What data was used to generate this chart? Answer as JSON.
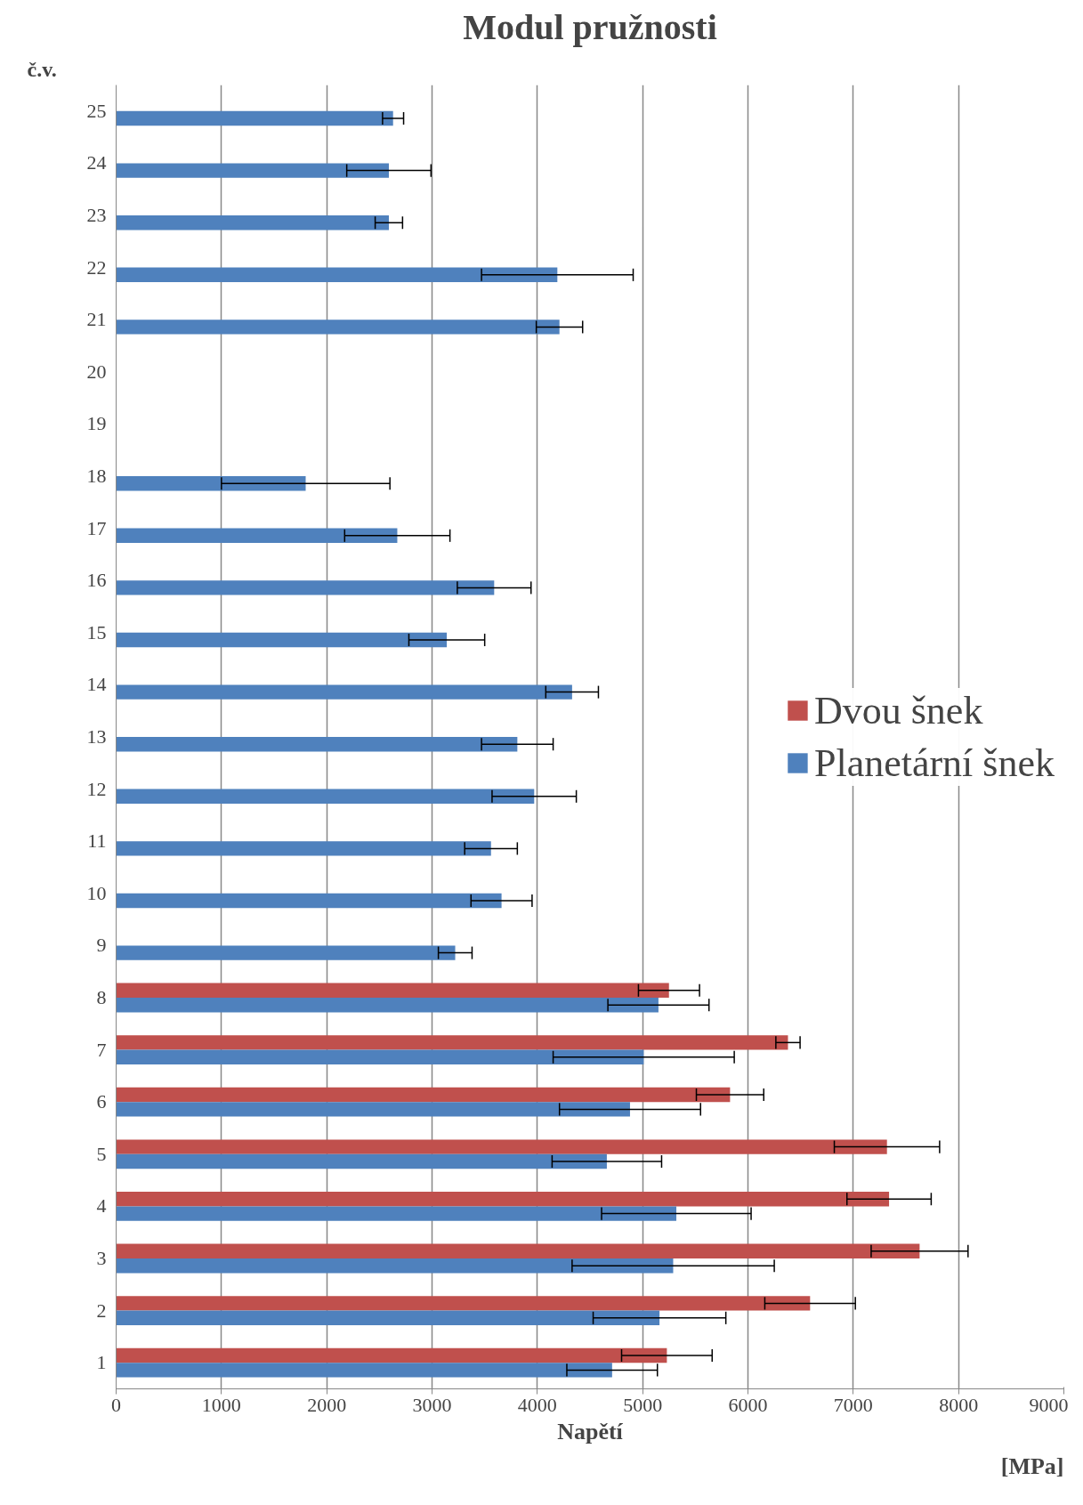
{
  "chart_data": {
    "type": "bar",
    "orientation": "horizontal",
    "title": "Modul pružnosti",
    "xlabel": "Napětí",
    "ylabel": "č.v.",
    "annotations": [
      "[MPa]"
    ],
    "categories": [
      "25",
      "24",
      "23",
      "22",
      "21",
      "20",
      "19",
      "18",
      "17",
      "16",
      "15",
      "14",
      "13",
      "12",
      "11",
      "10",
      "9",
      "8",
      "7",
      "6",
      "5",
      "4",
      "3",
      "2",
      "1"
    ],
    "series": [
      {
        "name": "Dvou šnek",
        "color": "#c0504d",
        "values": [
          null,
          null,
          null,
          null,
          null,
          null,
          null,
          null,
          null,
          null,
          null,
          null,
          null,
          null,
          null,
          null,
          null,
          5250,
          6380,
          5830,
          7320,
          7340,
          7630,
          6590,
          5230
        ],
        "errors": [
          null,
          null,
          null,
          null,
          null,
          null,
          null,
          null,
          null,
          null,
          null,
          null,
          null,
          null,
          null,
          null,
          null,
          290,
          115,
          320,
          500,
          400,
          460,
          430,
          430
        ]
      },
      {
        "name": "Planetární šnek",
        "color": "#4f81bd",
        "values": [
          2630,
          2590,
          2590,
          4190,
          4210,
          null,
          null,
          1800,
          2670,
          3590,
          3140,
          4330,
          3810,
          3970,
          3560,
          3660,
          3220,
          5150,
          5010,
          4880,
          4660,
          5320,
          5290,
          5160,
          4710
        ],
        "errors": [
          100,
          400,
          130,
          720,
          220,
          null,
          null,
          800,
          500,
          350,
          360,
          250,
          340,
          400,
          250,
          290,
          160,
          480,
          860,
          670,
          520,
          710,
          960,
          630,
          430
        ]
      }
    ],
    "xlim": [
      0,
      9000
    ],
    "xticks": [
      0,
      1000,
      2000,
      3000,
      4000,
      5000,
      6000,
      7000,
      8000,
      9000
    ],
    "grid": "x",
    "legend": "right"
  }
}
